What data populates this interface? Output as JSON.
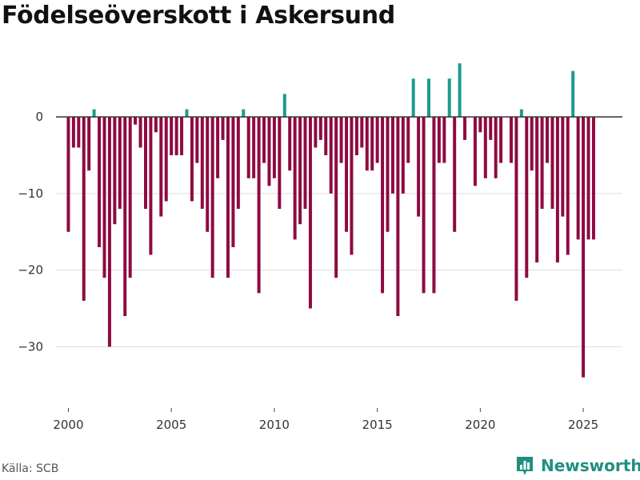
{
  "header": {
    "title": "Födelseöverskott i Askersund"
  },
  "footer": {
    "source": "Källa: SCB",
    "brand": "Newsworthy"
  },
  "colors": {
    "positive": "#1a9c8f",
    "negative": "#8e0a41",
    "grid": "#dddddd",
    "zero_line": "#333333"
  },
  "chart_data": {
    "type": "bar",
    "title": "Födelseöverskott i Askersund",
    "xlabel": "",
    "ylabel": "",
    "x_start": 2000,
    "x_step": 0.25,
    "xlim": [
      1999.4,
      2026.9
    ],
    "ylim": [
      -38,
      9
    ],
    "x_ticks": [
      2000,
      2005,
      2010,
      2015,
      2020,
      2025
    ],
    "y_ticks": [
      0,
      -10,
      -20,
      -30
    ],
    "y_tick_labels": [
      "0",
      "−10",
      "−20",
      "−30"
    ],
    "values": [
      -15,
      -4,
      -4,
      -24,
      -7,
      1,
      -17,
      -21,
      -30,
      -14,
      -12,
      -26,
      -21,
      -1,
      -4,
      -12,
      -18,
      -2,
      -13,
      -11,
      -5,
      -5,
      -5,
      1,
      -11,
      -6,
      -12,
      -15,
      -21,
      -8,
      -3,
      -21,
      -17,
      -12,
      1,
      -8,
      -8,
      -23,
      -6,
      -9,
      -8,
      -12,
      3,
      -7,
      -16,
      -14,
      -12,
      -25,
      -4,
      -3,
      -5,
      -10,
      -21,
      -6,
      -15,
      -18,
      -5,
      -4,
      -7,
      -7,
      -6,
      -23,
      -15,
      -10,
      -26,
      -10,
      -6,
      5,
      -13,
      -23,
      5,
      -23,
      -6,
      -6,
      5,
      -15,
      7,
      -3,
      0,
      -9,
      -2,
      -8,
      -3,
      -8,
      -6,
      0,
      -6,
      -24,
      1,
      -21,
      -7,
      -19,
      -12,
      -6,
      -12,
      -19,
      -13,
      -18,
      6,
      -16,
      -34,
      -16,
      -16
    ]
  }
}
